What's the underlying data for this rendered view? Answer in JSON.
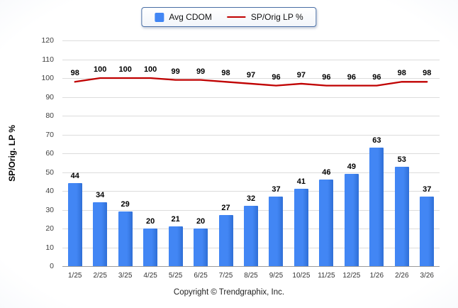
{
  "chart_data": {
    "type": "bar+line",
    "categories": [
      "1/25",
      "2/25",
      "3/25",
      "4/25",
      "5/25",
      "6/25",
      "7/25",
      "8/25",
      "9/25",
      "10/25",
      "11/25",
      "12/25",
      "1/26",
      "2/26",
      "3/26"
    ],
    "series": [
      {
        "name": "Avg CDOM",
        "type": "bar",
        "color": "#4286f4",
        "values": [
          44,
          34,
          29,
          20,
          21,
          20,
          27,
          32,
          37,
          41,
          46,
          49,
          63,
          53,
          37
        ]
      },
      {
        "name": "SP/Orig LP %",
        "type": "line",
        "color": "#c00000",
        "values": [
          98,
          100,
          100,
          100,
          99,
          99,
          98,
          97,
          96,
          97,
          96,
          96,
          96,
          98,
          98
        ]
      }
    ],
    "title": "",
    "xlabel": "",
    "ylabel": "SP/Orig. LP %",
    "ylim": [
      0,
      120
    ],
    "ytick_step": 10,
    "grid": true,
    "legend_position": "top"
  },
  "footer": {
    "copyright": "Copyright © Trendgraphix, Inc."
  }
}
